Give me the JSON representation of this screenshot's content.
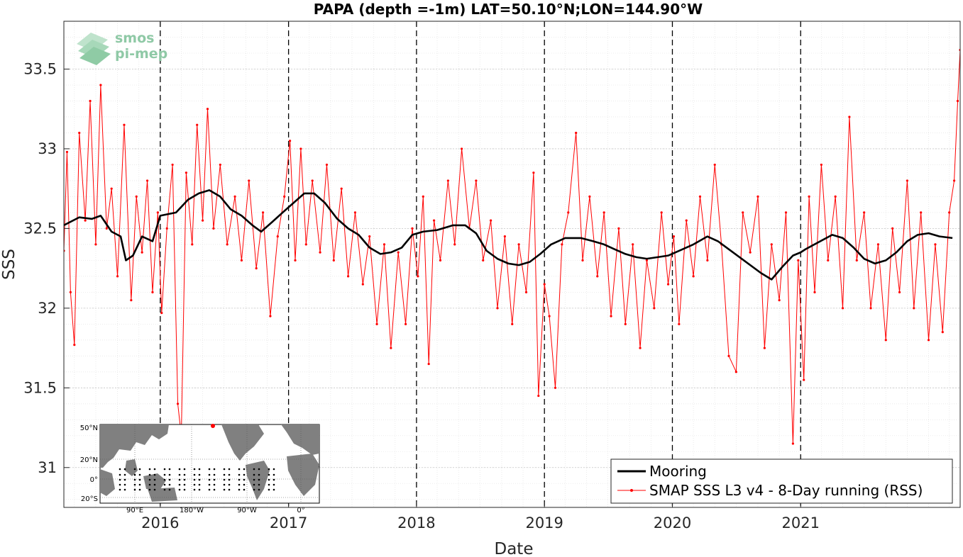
{
  "chart_data": {
    "type": "line",
    "title": "PAPA (depth =-1m) LAT=50.10°N;LON=144.90°W",
    "xlabel": "Date",
    "ylabel": "SSS",
    "xlim": [
      "2015-04-01",
      "2022-04-01"
    ],
    "ylim": [
      30.75,
      33.8
    ],
    "x_ticks": [
      "2016",
      "2017",
      "2018",
      "2019",
      "2020",
      "2021"
    ],
    "x_tick_dates": [
      "2016-01-01",
      "2017-01-01",
      "2018-01-01",
      "2019-01-01",
      "2020-01-01",
      "2021-01-01"
    ],
    "y_ticks": [
      31,
      31.5,
      32,
      32.5,
      33,
      33.5
    ],
    "y_tick_labels": [
      "31",
      "31.5",
      "32",
      "32.5",
      "33",
      "33.5"
    ],
    "grid": true,
    "minor_grid": true,
    "year_boundaries_dashed": true,
    "legend_position": "bottom-right",
    "series": [
      {
        "name": "Mooring",
        "color": "#000000",
        "points": [
          [
            "2015-04-01",
            32.52
          ],
          [
            "2015-05-15",
            32.57
          ],
          [
            "2015-06-20",
            32.56
          ],
          [
            "2015-07-15",
            32.58
          ],
          [
            "2015-08-15",
            32.48
          ],
          [
            "2015-09-10",
            32.45
          ],
          [
            "2015-09-25",
            32.3
          ],
          [
            "2015-10-15",
            32.33
          ],
          [
            "2015-11-10",
            32.45
          ],
          [
            "2015-12-10",
            32.42
          ],
          [
            "2016-01-01",
            32.58
          ],
          [
            "2016-02-15",
            32.6
          ],
          [
            "2016-03-20",
            32.68
          ],
          [
            "2016-04-20",
            32.72
          ],
          [
            "2016-05-20",
            32.74
          ],
          [
            "2016-06-20",
            32.7
          ],
          [
            "2016-07-20",
            32.62
          ],
          [
            "2016-08-20",
            32.58
          ],
          [
            "2016-09-20",
            32.52
          ],
          [
            "2016-10-15",
            32.48
          ],
          [
            "2016-11-15",
            32.54
          ],
          [
            "2016-12-15",
            32.6
          ],
          [
            "2017-01-15",
            32.66
          ],
          [
            "2017-02-15",
            32.72
          ],
          [
            "2017-03-15",
            32.72
          ],
          [
            "2017-04-15",
            32.66
          ],
          [
            "2017-05-20",
            32.56
          ],
          [
            "2017-06-20",
            32.5
          ],
          [
            "2017-07-20",
            32.46
          ],
          [
            "2017-08-20",
            32.38
          ],
          [
            "2017-09-20",
            32.34
          ],
          [
            "2017-10-20",
            32.35
          ],
          [
            "2017-11-20",
            32.38
          ],
          [
            "2017-12-20",
            32.46
          ],
          [
            "2018-01-20",
            32.48
          ],
          [
            "2018-03-01",
            32.49
          ],
          [
            "2018-04-15",
            32.52
          ],
          [
            "2018-05-20",
            32.52
          ],
          [
            "2018-06-20",
            32.47
          ],
          [
            "2018-07-20",
            32.36
          ],
          [
            "2018-08-20",
            32.31
          ],
          [
            "2018-09-20",
            32.28
          ],
          [
            "2018-10-20",
            32.27
          ],
          [
            "2018-11-20",
            32.29
          ],
          [
            "2018-12-20",
            32.34
          ],
          [
            "2019-01-20",
            32.4
          ],
          [
            "2019-03-01",
            32.44
          ],
          [
            "2019-04-15",
            32.44
          ],
          [
            "2019-05-20",
            32.42
          ],
          [
            "2019-06-20",
            32.4
          ],
          [
            "2019-07-20",
            32.37
          ],
          [
            "2019-08-20",
            32.34
          ],
          [
            "2019-09-20",
            32.32
          ],
          [
            "2019-10-20",
            32.31
          ],
          [
            "2019-11-20",
            32.32
          ],
          [
            "2019-12-20",
            32.33
          ],
          [
            "2020-01-20",
            32.36
          ],
          [
            "2020-03-01",
            32.4
          ],
          [
            "2020-04-10",
            32.45
          ],
          [
            "2020-05-10",
            32.42
          ],
          [
            "2020-09-10",
            32.22
          ],
          [
            "2020-10-10",
            32.18
          ],
          [
            "2020-11-10",
            32.26
          ],
          [
            "2020-12-10",
            32.33
          ],
          [
            "2021-01-01",
            32.35
          ],
          [
            "2021-01-15",
            32.37
          ],
          [
            "2021-04-01",
            32.46
          ],
          [
            "2021-05-01",
            32.44
          ],
          [
            "2021-06-01",
            32.38
          ],
          [
            "2021-07-01",
            32.31
          ],
          [
            "2021-08-01",
            32.28
          ],
          [
            "2021-09-01",
            32.3
          ],
          [
            "2021-10-01",
            32.35
          ],
          [
            "2021-11-01",
            32.42
          ],
          [
            "2021-12-01",
            32.46
          ],
          [
            "2022-01-01",
            32.47
          ],
          [
            "2022-02-01",
            32.45
          ],
          [
            "2022-03-10",
            32.44
          ]
        ]
      },
      {
        "name": "SMAP SSS L3 v4 - 8-Day running (RSS)",
        "color": "#ff0000",
        "points": [
          [
            "2015-04-01",
            32.36
          ],
          [
            "2015-04-10",
            32.98
          ],
          [
            "2015-04-20",
            32.1
          ],
          [
            "2015-05-01",
            31.77
          ],
          [
            "2015-05-15",
            33.1
          ],
          [
            "2015-06-01",
            32.55
          ],
          [
            "2015-06-15",
            33.3
          ],
          [
            "2015-07-01",
            32.4
          ],
          [
            "2015-07-15",
            33.4
          ],
          [
            "2015-08-01",
            32.5
          ],
          [
            "2015-08-15",
            32.75
          ],
          [
            "2015-09-01",
            32.2
          ],
          [
            "2015-09-20",
            33.15
          ],
          [
            "2015-10-10",
            32.05
          ],
          [
            "2015-10-25",
            32.7
          ],
          [
            "2015-11-10",
            32.35
          ],
          [
            "2015-11-25",
            32.8
          ],
          [
            "2015-12-10",
            32.1
          ],
          [
            "2015-12-25",
            32.6
          ],
          [
            "2016-01-05",
            31.97
          ],
          [
            "2016-01-20",
            32.5
          ],
          [
            "2016-02-05",
            32.9
          ],
          [
            "2016-02-20",
            31.4
          ],
          [
            "2016-03-01",
            31.2
          ],
          [
            "2016-03-15",
            32.85
          ],
          [
            "2016-04-01",
            32.4
          ],
          [
            "2016-04-15",
            33.15
          ],
          [
            "2016-05-01",
            32.55
          ],
          [
            "2016-05-15",
            33.25
          ],
          [
            "2016-06-01",
            32.5
          ],
          [
            "2016-06-20",
            32.9
          ],
          [
            "2016-07-10",
            32.4
          ],
          [
            "2016-08-01",
            32.7
          ],
          [
            "2016-08-20",
            32.3
          ],
          [
            "2016-09-10",
            32.8
          ],
          [
            "2016-10-01",
            32.25
          ],
          [
            "2016-10-20",
            32.6
          ],
          [
            "2016-11-10",
            31.95
          ],
          [
            "2016-12-01",
            32.45
          ],
          [
            "2016-12-20",
            32.7
          ],
          [
            "2017-01-05",
            33.05
          ],
          [
            "2017-01-20",
            32.3
          ],
          [
            "2017-02-05",
            33.0
          ],
          [
            "2017-02-20",
            32.4
          ],
          [
            "2017-03-10",
            32.8
          ],
          [
            "2017-04-01",
            32.35
          ],
          [
            "2017-04-20",
            32.9
          ],
          [
            "2017-05-10",
            32.3
          ],
          [
            "2017-06-01",
            32.75
          ],
          [
            "2017-06-20",
            32.2
          ],
          [
            "2017-07-10",
            32.6
          ],
          [
            "2017-08-01",
            32.15
          ],
          [
            "2017-08-20",
            32.45
          ],
          [
            "2017-09-10",
            31.9
          ],
          [
            "2017-10-01",
            32.4
          ],
          [
            "2017-10-20",
            31.75
          ],
          [
            "2017-11-10",
            32.35
          ],
          [
            "2017-12-01",
            31.9
          ],
          [
            "2017-12-20",
            32.5
          ],
          [
            "2018-01-05",
            32.2
          ],
          [
            "2018-01-20",
            32.7
          ],
          [
            "2018-02-05",
            31.65
          ],
          [
            "2018-02-20",
            32.55
          ],
          [
            "2018-03-10",
            32.3
          ],
          [
            "2018-04-01",
            32.8
          ],
          [
            "2018-04-20",
            32.4
          ],
          [
            "2018-05-10",
            33.0
          ],
          [
            "2018-06-01",
            32.5
          ],
          [
            "2018-06-20",
            32.8
          ],
          [
            "2018-07-10",
            32.3
          ],
          [
            "2018-08-01",
            32.55
          ],
          [
            "2018-08-20",
            32.0
          ],
          [
            "2018-09-10",
            32.45
          ],
          [
            "2018-10-01",
            31.9
          ],
          [
            "2018-10-20",
            32.4
          ],
          [
            "2018-11-10",
            32.1
          ],
          [
            "2018-12-01",
            32.85
          ],
          [
            "2018-12-15",
            31.45
          ],
          [
            "2019-01-01",
            32.15
          ],
          [
            "2019-01-15",
            31.95
          ],
          [
            "2019-02-01",
            31.5
          ],
          [
            "2019-02-20",
            32.4
          ],
          [
            "2019-03-10",
            32.6
          ],
          [
            "2019-04-01",
            33.1
          ],
          [
            "2019-04-20",
            32.3
          ],
          [
            "2019-05-10",
            32.7
          ],
          [
            "2019-06-01",
            32.2
          ],
          [
            "2019-06-20",
            32.6
          ],
          [
            "2019-07-10",
            31.95
          ],
          [
            "2019-08-01",
            32.5
          ],
          [
            "2019-08-20",
            31.9
          ],
          [
            "2019-09-10",
            32.4
          ],
          [
            "2019-10-01",
            31.75
          ],
          [
            "2019-10-20",
            32.3
          ],
          [
            "2019-11-10",
            32.0
          ],
          [
            "2019-12-01",
            32.6
          ],
          [
            "2019-12-20",
            32.15
          ],
          [
            "2020-01-05",
            32.45
          ],
          [
            "2020-01-20",
            31.9
          ],
          [
            "2020-02-10",
            32.55
          ],
          [
            "2020-03-01",
            32.2
          ],
          [
            "2020-03-20",
            32.7
          ],
          [
            "2020-04-10",
            32.3
          ],
          [
            "2020-05-01",
            32.9
          ],
          [
            "2020-05-20",
            32.4
          ],
          [
            "2020-06-10",
            31.7
          ],
          [
            "2020-07-01",
            31.6
          ],
          [
            "2020-07-20",
            32.6
          ],
          [
            "2020-08-10",
            32.35
          ],
          [
            "2020-09-01",
            32.7
          ],
          [
            "2020-09-20",
            31.75
          ],
          [
            "2020-10-10",
            32.4
          ],
          [
            "2020-11-01",
            32.05
          ],
          [
            "2020-11-20",
            32.6
          ],
          [
            "2020-12-10",
            31.15
          ],
          [
            "2020-12-25",
            32.3
          ],
          [
            "2021-01-10",
            31.55
          ],
          [
            "2021-01-25",
            32.7
          ],
          [
            "2021-02-10",
            32.1
          ],
          [
            "2021-03-01",
            32.9
          ],
          [
            "2021-03-20",
            32.3
          ],
          [
            "2021-04-10",
            32.7
          ],
          [
            "2021-05-01",
            32.0
          ],
          [
            "2021-05-20",
            33.2
          ],
          [
            "2021-06-10",
            32.3
          ],
          [
            "2021-07-01",
            32.6
          ],
          [
            "2021-07-20",
            32.0
          ],
          [
            "2021-08-10",
            32.4
          ],
          [
            "2021-09-01",
            31.8
          ],
          [
            "2021-09-20",
            32.5
          ],
          [
            "2021-10-10",
            32.1
          ],
          [
            "2021-11-01",
            32.8
          ],
          [
            "2021-11-20",
            32.0
          ],
          [
            "2021-12-10",
            32.6
          ],
          [
            "2022-01-01",
            31.8
          ],
          [
            "2022-01-20",
            32.4
          ],
          [
            "2022-02-10",
            31.85
          ],
          [
            "2022-03-01",
            32.6
          ],
          [
            "2022-03-15",
            32.8
          ],
          [
            "2022-03-25",
            33.3
          ],
          [
            "2022-04-01",
            33.62
          ]
        ]
      }
    ]
  },
  "inset_map": {
    "lat_labels": [
      "50°N",
      "20°N",
      "0°",
      "20°S"
    ],
    "lon_labels": [
      "90°E",
      "180°W",
      "90°W",
      "0°"
    ],
    "ocean_color": "#ffffff",
    "land_color": "#808080",
    "site_color": "#ff0000"
  },
  "logo": {
    "line1": "smos",
    "line2": "pi-mep"
  }
}
